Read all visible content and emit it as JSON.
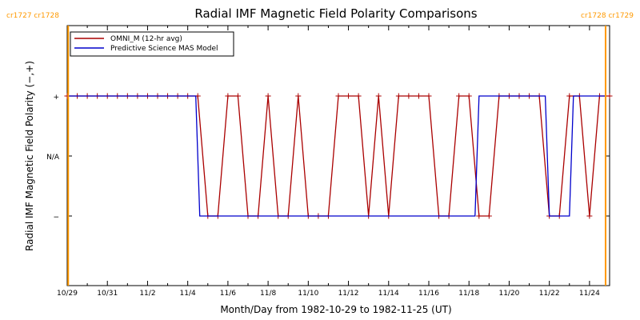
{
  "chart_data": {
    "type": "line",
    "title": "Radial IMF Magnetic Field Polarity Comparisons",
    "xlabel": "Month/Day from 1982-10-29 to 1982-11-25 (UT)",
    "ylabel": "Radial IMF Magnetic Field Polarity (−,+)",
    "xlim": [
      0,
      27
    ],
    "ylim": [
      -2,
      2
    ],
    "x_ticks": [
      {
        "x": 0,
        "label": "10/29"
      },
      {
        "x": 2,
        "label": "10/31"
      },
      {
        "x": 4,
        "label": "11/2"
      },
      {
        "x": 6,
        "label": "11/4"
      },
      {
        "x": 8,
        "label": "11/6"
      },
      {
        "x": 10,
        "label": "11/8"
      },
      {
        "x": 12,
        "label": "11/10"
      },
      {
        "x": 14,
        "label": "11/12"
      },
      {
        "x": 16,
        "label": "11/14"
      },
      {
        "x": 18,
        "label": "11/16"
      },
      {
        "x": 20,
        "label": "11/18"
      },
      {
        "x": 22,
        "label": "11/20"
      },
      {
        "x": 24,
        "label": "11/22"
      },
      {
        "x": 26,
        "label": "11/24"
      }
    ],
    "y_ticks": [
      {
        "y": 1,
        "label": "+"
      },
      {
        "y": 0,
        "label": "N/A"
      },
      {
        "y": -1,
        "label": "−"
      }
    ],
    "legend": {
      "placement": "top-left",
      "entries": [
        {
          "label": "OMNI_M (12-hr avg)",
          "color": "#aa0000"
        },
        {
          "label": "Predictive Science MAS Model",
          "color": "#0000cc"
        }
      ]
    },
    "series": [
      {
        "name": "OMNI_M (12-hr avg)",
        "color": "#aa0000",
        "marker": "plus",
        "points": [
          [
            0.0,
            1
          ],
          [
            0.5,
            1
          ],
          [
            1.0,
            1
          ],
          [
            1.5,
            1
          ],
          [
            2.0,
            1
          ],
          [
            2.5,
            1
          ],
          [
            3.0,
            1
          ],
          [
            3.5,
            1
          ],
          [
            4.0,
            1
          ],
          [
            4.5,
            1
          ],
          [
            5.0,
            1
          ],
          [
            5.5,
            1
          ],
          [
            6.0,
            1
          ],
          [
            6.5,
            1
          ],
          [
            7.0,
            -1
          ],
          [
            7.5,
            -1
          ],
          [
            8.0,
            1
          ],
          [
            8.5,
            1
          ],
          [
            9.0,
            -1
          ],
          [
            9.5,
            -1
          ],
          [
            10.0,
            1
          ],
          [
            10.5,
            -1
          ],
          [
            11.0,
            -1
          ],
          [
            11.5,
            1
          ],
          [
            12.0,
            -1
          ],
          [
            12.5,
            -1
          ],
          [
            13.0,
            -1
          ],
          [
            13.5,
            1
          ],
          [
            14.0,
            1
          ],
          [
            14.5,
            1
          ],
          [
            15.0,
            -1
          ],
          [
            15.5,
            1
          ],
          [
            16.0,
            -1
          ],
          [
            16.5,
            1
          ],
          [
            17.0,
            1
          ],
          [
            17.5,
            1
          ],
          [
            18.0,
            1
          ],
          [
            18.5,
            -1
          ],
          [
            19.0,
            -1
          ],
          [
            19.5,
            1
          ],
          [
            20.0,
            1
          ],
          [
            20.5,
            -1
          ],
          [
            21.0,
            -1
          ],
          [
            21.5,
            1
          ],
          [
            22.0,
            1
          ],
          [
            22.5,
            1
          ],
          [
            23.0,
            1
          ],
          [
            23.5,
            1
          ],
          [
            24.0,
            -1
          ],
          [
            24.5,
            -1
          ],
          [
            25.0,
            1
          ],
          [
            25.5,
            1
          ],
          [
            26.0,
            -1
          ],
          [
            26.5,
            1
          ],
          [
            27.0,
            1
          ]
        ]
      },
      {
        "name": "Predictive Science MAS Model",
        "color": "#0000cc",
        "marker": "none",
        "points": [
          [
            0.0,
            1
          ],
          [
            6.4,
            1
          ],
          [
            6.6,
            -1
          ],
          [
            20.3,
            -1
          ],
          [
            20.5,
            1
          ],
          [
            23.8,
            1
          ],
          [
            24.0,
            -1
          ],
          [
            25.0,
            -1
          ],
          [
            25.2,
            1
          ],
          [
            26.8,
            1
          ]
        ]
      }
    ],
    "vertical_markers": [
      {
        "x": 0.05,
        "label": "cr1727 cr1728",
        "color": "#ff9900",
        "anchor": "left"
      },
      {
        "x": 26.8,
        "label": "cr1728 cr1729",
        "color": "#ff9900",
        "anchor": "right"
      }
    ]
  }
}
